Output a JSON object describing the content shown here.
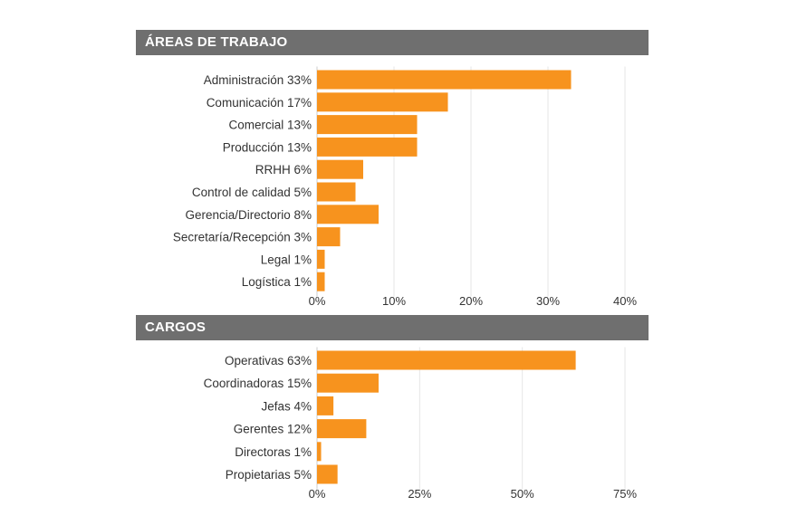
{
  "sections": {
    "areas_title": "ÁREAS DE TRABAJO",
    "cargos_title": "CARGOS"
  },
  "colors": {
    "bar": "#f7931e",
    "header_bg": "#6f6f6f",
    "header_text": "#ffffff"
  },
  "chart_data": [
    {
      "type": "bar",
      "orientation": "horizontal",
      "title": "ÁREAS DE TRABAJO",
      "categories": [
        "Administración 33%",
        "Comunicación 17%",
        "Comercial 13%",
        "Producción 13%",
        "RRHH 6%",
        "Control de calidad 5%",
        "Gerencia/Directorio 8%",
        "Secretaría/Recepción 3%",
        "Legal 1%",
        "Logística 1%"
      ],
      "values": [
        33,
        17,
        13,
        13,
        6,
        5,
        8,
        3,
        1,
        1
      ],
      "xlim": [
        0,
        40
      ],
      "xticks": [
        "0%",
        "10%",
        "20%",
        "30%",
        "40%"
      ],
      "grid": true
    },
    {
      "type": "bar",
      "orientation": "horizontal",
      "title": "CARGOS",
      "categories": [
        "Operativas 63%",
        "Coordinadoras 15%",
        "Jefas 4%",
        "Gerentes 12%",
        "Directoras 1%",
        "Propietarias 5%"
      ],
      "values": [
        63,
        15,
        4,
        12,
        1,
        5
      ],
      "xlim": [
        0,
        75
      ],
      "xticks": [
        "0%",
        "25%",
        "50%",
        "75%"
      ],
      "grid": true
    }
  ]
}
